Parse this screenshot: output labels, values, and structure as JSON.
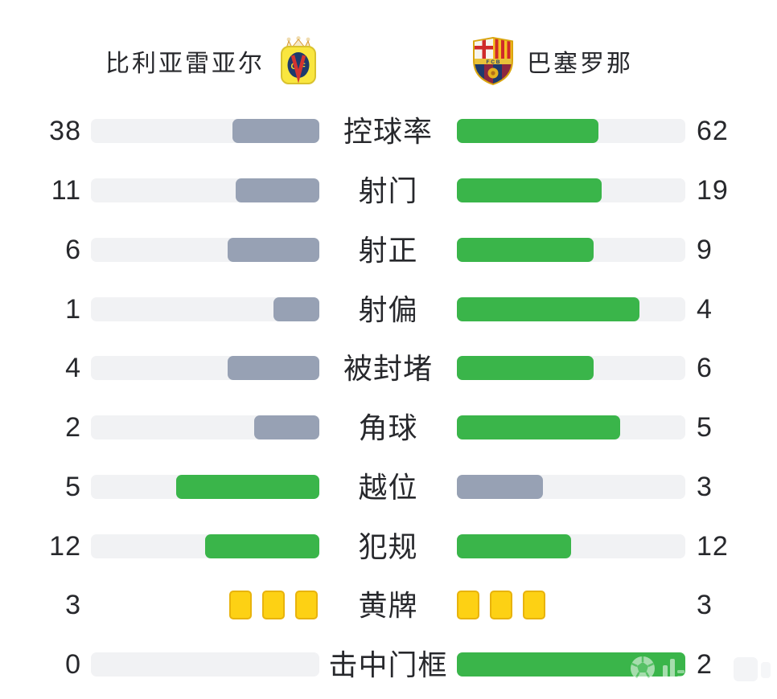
{
  "page": {
    "background": "#ffffff"
  },
  "header": {
    "home_team": {
      "name": "比利亚雷亚尔",
      "crest_icon": "villarreal-crest"
    },
    "away_team": {
      "name": "巴塞罗那",
      "crest_icon": "barcelona-crest"
    }
  },
  "colors": {
    "green": "#3ab54a",
    "gray": "#97a1b4",
    "track": "#f1f2f4",
    "yellow_card": "#fdd114",
    "yellow_card_border": "#e8b30c",
    "text": "#27282c"
  },
  "rows": [
    {
      "label": "控球率",
      "type": "bar",
      "home": {
        "value": "38",
        "style": "gray"
      },
      "away": {
        "value": "62",
        "style": "green"
      }
    },
    {
      "label": "射门",
      "type": "bar",
      "home": {
        "value": "11",
        "style": "gray"
      },
      "away": {
        "value": "19",
        "style": "green"
      }
    },
    {
      "label": "射正",
      "type": "bar",
      "home": {
        "value": "6",
        "style": "gray"
      },
      "away": {
        "value": "9",
        "style": "green"
      }
    },
    {
      "label": "射偏",
      "type": "bar",
      "home": {
        "value": "1",
        "style": "gray"
      },
      "away": {
        "value": "4",
        "style": "green"
      }
    },
    {
      "label": "被封堵",
      "type": "bar",
      "home": {
        "value": "4",
        "style": "gray"
      },
      "away": {
        "value": "6",
        "style": "green"
      }
    },
    {
      "label": "角球",
      "type": "bar",
      "home": {
        "value": "2",
        "style": "gray"
      },
      "away": {
        "value": "5",
        "style": "green"
      }
    },
    {
      "label": "越位",
      "type": "bar",
      "home": {
        "value": "5",
        "style": "green"
      },
      "away": {
        "value": "3",
        "style": "gray"
      }
    },
    {
      "label": "犯规",
      "type": "bar",
      "home": {
        "value": "12",
        "style": "green"
      },
      "away": {
        "value": "12",
        "style": "green"
      }
    },
    {
      "label": "黄牌",
      "type": "cards",
      "home": {
        "value": "3",
        "style": "yellow-cards"
      },
      "away": {
        "value": "3",
        "style": "yellow-cards"
      }
    },
    {
      "label": "击中门框",
      "type": "bar",
      "home": {
        "value": "0",
        "style": "empty"
      },
      "away": {
        "value": "2",
        "style": "green"
      }
    }
  ],
  "watermark": {
    "icon": "football-icon"
  },
  "chart_data": {
    "type": "bar",
    "title": "比利亚雷亚尔 vs 巴塞罗那",
    "orientation": "horizontal-paired",
    "categories": [
      "控球率",
      "射门",
      "射正",
      "射偏",
      "被封堵",
      "角球",
      "越位",
      "犯规",
      "黄牌",
      "击中门框"
    ],
    "series": [
      {
        "name": "比利亚雷亚尔",
        "values": [
          38,
          11,
          6,
          1,
          4,
          2,
          5,
          12,
          3,
          0
        ]
      },
      {
        "name": "巴塞罗那",
        "values": [
          62,
          19,
          9,
          4,
          6,
          5,
          3,
          12,
          3,
          2
        ]
      }
    ],
    "bar_fraction_rule": "value / (home + away)",
    "color_rule": "green #3ab54a if value >= opponent, gray #97a1b4 if lower; 黄牌 row shown as yellow card squares",
    "legend_position": "top (team names with crests)",
    "grid": false
  }
}
